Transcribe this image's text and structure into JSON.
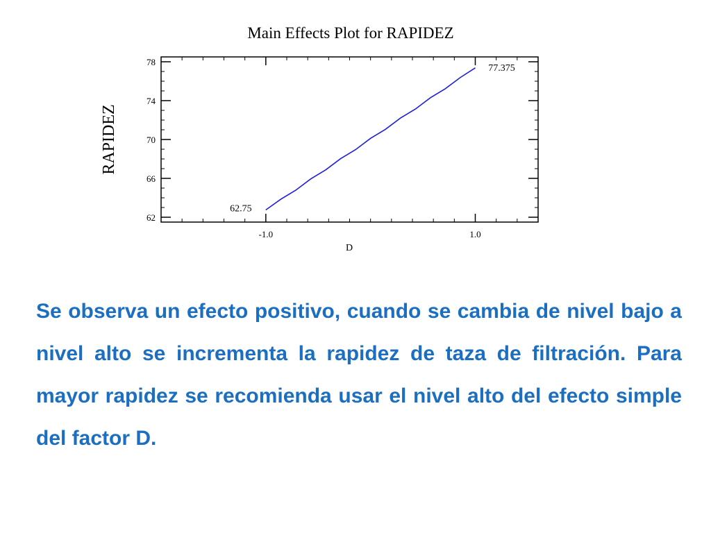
{
  "chart_data": {
    "type": "line",
    "title": "Main Effects Plot for RAPIDEZ",
    "xlabel": "D",
    "ylabel": "RAPIDEZ",
    "categories": [
      "-1.0",
      "1.0"
    ],
    "x": [
      -1.0,
      1.0
    ],
    "series": [
      {
        "values": [
          62.75,
          77.375
        ],
        "data_labels": [
          "62.75",
          "77.375"
        ],
        "color": "#1f1fd6"
      }
    ],
    "x_range": [
      -2.0,
      1.6
    ],
    "ylim": [
      61.5,
      78.5
    ],
    "y_ticks": [
      62,
      66,
      70,
      74,
      78
    ],
    "y_tick_labels": [
      "62",
      "66",
      "70",
      "74",
      "78"
    ],
    "grid": false,
    "legend": "none"
  },
  "text": {
    "description": "Se observa un efecto positivo, cuando se cambia de nivel bajo a nivel alto se incrementa la rapidez de taza de filtración. Para mayor rapidez se recomienda usar el nivel alto del efecto simple del factor D."
  },
  "colors": {
    "description_text": "#1c6fc0",
    "line": "#1f1fd6"
  }
}
